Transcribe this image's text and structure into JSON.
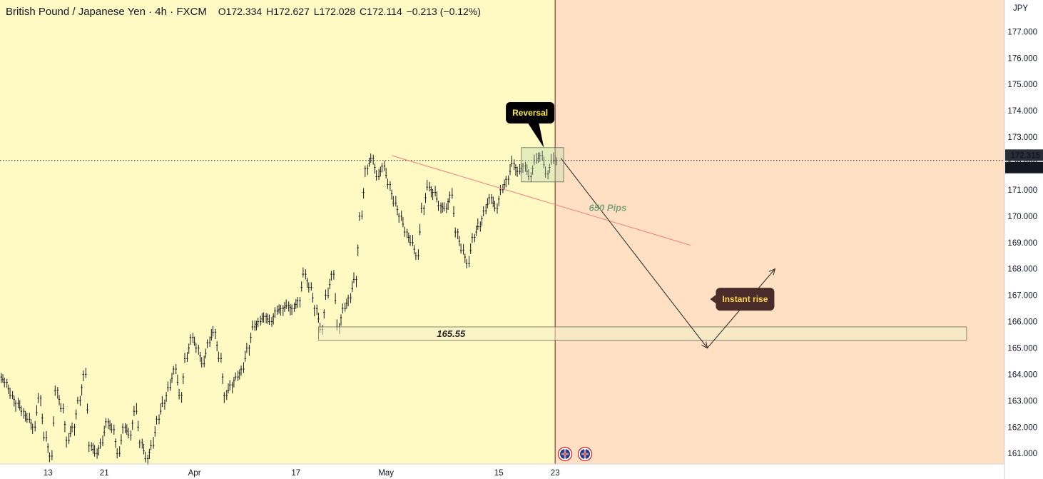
{
  "legend": {
    "symbol": "British Pound / Japanese Yen · 4h · FXCM",
    "open_key": "O",
    "open": "172.334",
    "high_key": "H",
    "high": "172.627",
    "low_key": "L",
    "low": "172.028",
    "close_key": "C",
    "close": "172.114",
    "change": "−0.213 (−0.12%)"
  },
  "colors": {
    "history_bg": "#fff9c4",
    "forecast_bg": "#ffe0c2",
    "candle": "#131722",
    "trendline": "#f08080",
    "divider": "#8b3a3a",
    "zone_fill": "#f3f0c8",
    "callout_bg_reversal": "#000000",
    "callout_text_reversal": "#ffeb3b",
    "callout_bg_rise": "#4a2c2a",
    "callout_text_rise": "#ffd54f",
    "current_price_bg": "#131722",
    "mark_price_bg": "#2a2e39"
  },
  "chart_data": {
    "type": "candlestick",
    "currency": "JPY",
    "ylim": [
      160.6,
      178.2
    ],
    "y_ticks": [
      "177.000",
      "176.000",
      "175.000",
      "174.000",
      "173.000",
      "172.000",
      "171.000",
      "170.000",
      "169.000",
      "168.000",
      "167.000",
      "166.000",
      "165.000",
      "164.000",
      "163.000",
      "162.000",
      "161.000"
    ],
    "x_ticks": [
      "13",
      "21",
      "Apr",
      "17",
      "May",
      "15",
      "23"
    ],
    "x_tick_index": [
      8,
      18,
      34,
      52,
      68,
      88,
      98
    ],
    "last_bar_index": 98,
    "forecast_end_index": 178,
    "current_price": "172.114",
    "mark_price": "172.315",
    "series_close": [
      163.7,
      163.2,
      162.9,
      162.6,
      162.3,
      162.0,
      163.1,
      161.6,
      160.9,
      163.4,
      162.7,
      161.5,
      162.0,
      163.0,
      164.0,
      161.3,
      161.0,
      161.4,
      162.2,
      161.9,
      161.0,
      162.0,
      161.7,
      162.6,
      161.4,
      160.8,
      161.3,
      162.3,
      162.9,
      163.5,
      164.2,
      163.2,
      164.6,
      165.4,
      165.0,
      164.4,
      165.2,
      165.6,
      164.6,
      163.2,
      163.6,
      163.9,
      164.2,
      165.0,
      165.8,
      166.0,
      166.2,
      166.0,
      166.4,
      166.5,
      166.6,
      166.5,
      166.8,
      167.8,
      167.3,
      166.5,
      165.7,
      167.0,
      167.8,
      165.8,
      166.5,
      166.9,
      167.6,
      170.0,
      171.8,
      172.2,
      171.5,
      171.9,
      171.2,
      170.5,
      170.0,
      169.4,
      169.0,
      168.5,
      170.3,
      171.1,
      170.9,
      170.4,
      170.3,
      170.8,
      169.4,
      168.7,
      168.2,
      169.2,
      169.6,
      170.2,
      170.7,
      170.3,
      171.0,
      171.4,
      172.0,
      171.7,
      171.9,
      171.5,
      172.1,
      172.3,
      171.6,
      172.1,
      172.114
    ],
    "support_level": "165.55",
    "support_range": [
      165.3,
      165.8
    ],
    "consolidation_box": {
      "x_start_index": 92,
      "x_end_index": 99,
      "y_range": [
        171.3,
        172.6
      ]
    },
    "trendline": {
      "points": [
        {
          "index": 69,
          "price": 172.3
        },
        {
          "index": 122,
          "price": 168.9
        }
      ]
    },
    "projection": {
      "points": [
        {
          "index": 99,
          "price": 172.2
        },
        {
          "index": 125,
          "price": 165.0
        },
        {
          "index": 137,
          "price": 168.0
        }
      ]
    },
    "annotations": {
      "pips": "650 Pips",
      "reversal": "Reversal",
      "instant_rise": "Instant rise"
    }
  }
}
